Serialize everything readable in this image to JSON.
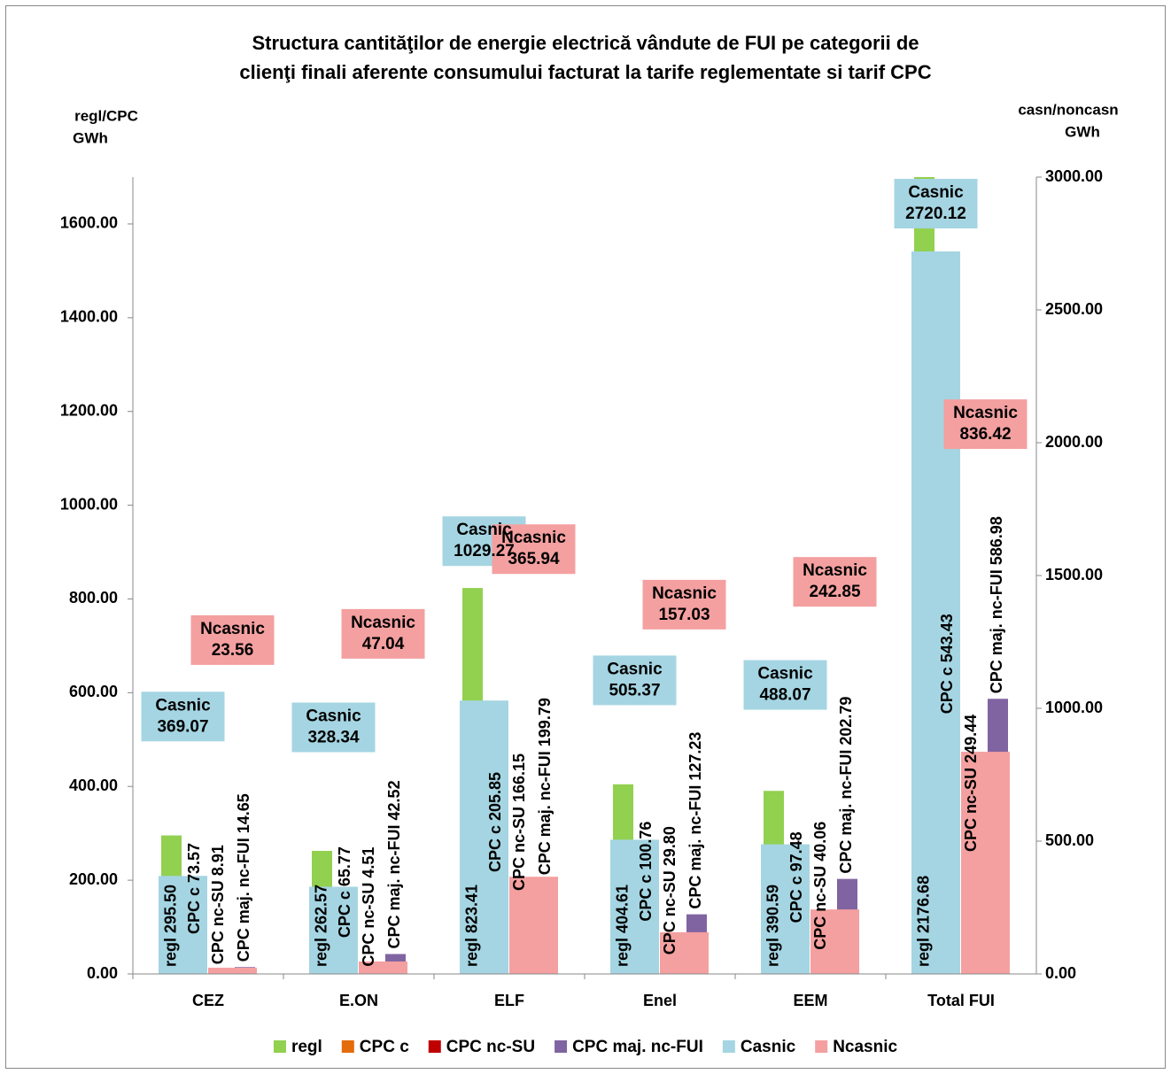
{
  "chart_data": {
    "type": "bar",
    "title": [
      "Structura cantităţilor de energie electrică vândute de FUI pe categorii de",
      "clienţi finali aferente consumului facturat la tarife reglementate si tarif CPC"
    ],
    "y_label": [
      "regl/CPC",
      "GWh"
    ],
    "y2_label": [
      "casn/noncasn",
      "GWh"
    ],
    "categories": [
      "CEZ",
      "E.ON",
      "ELF",
      "Enel",
      "EEM",
      "Total FUI"
    ],
    "ylim": [
      0,
      1700
    ],
    "yticks": [
      {
        "value": 0,
        "label": "0.00"
      },
      {
        "value": 200,
        "label": "200.00"
      },
      {
        "value": 400,
        "label": "400.00"
      },
      {
        "value": 600,
        "label": "600.00"
      },
      {
        "value": 800,
        "label": "800.00"
      },
      {
        "value": 1000,
        "label": "1000.00"
      },
      {
        "value": 1200,
        "label": "1200.00"
      },
      {
        "value": 1400,
        "label": "1400.00"
      },
      {
        "value": 1600,
        "label": "1600.00"
      }
    ],
    "y2lim": [
      0,
      3000
    ],
    "y2ticks": [
      {
        "value": 0,
        "label": "0.00"
      },
      {
        "value": 500,
        "label": "500.00"
      },
      {
        "value": 1000,
        "label": "1000.00"
      },
      {
        "value": 1500,
        "label": "1500.00"
      },
      {
        "value": 2000,
        "label": "2000.00"
      },
      {
        "value": 2500,
        "label": "2500.00"
      },
      {
        "value": 3000,
        "label": "3000.00"
      }
    ],
    "legend": "bottom",
    "series": [
      {
        "name": "regl",
        "color": "#92d050",
        "values": [
          295.5,
          262.57,
          823.41,
          404.61,
          390.59,
          2176.68
        ],
        "value_labels": [
          "regl 295.50",
          "regl 262.57",
          "regl 823.41",
          "regl 404.61",
          "regl 390.59",
          "regl 2176.68"
        ]
      },
      {
        "name": "CPC c",
        "color": "#e46c0a",
        "values": [
          73.57,
          65.77,
          205.85,
          100.76,
          97.48,
          543.43
        ],
        "value_labels": [
          "CPC c 73.57",
          "CPC c 65.77",
          "CPC c 205.85",
          "CPC c 100.76",
          "CPC c 97.48",
          "CPC c 543.43"
        ]
      },
      {
        "name": "CPC nc-SU",
        "color": "#c00000",
        "values": [
          8.91,
          4.51,
          166.15,
          29.8,
          40.06,
          249.44
        ],
        "value_labels": [
          "CPC nc-SU 8.91",
          "CPC nc-SU 4.51",
          "CPC nc-SU 166.15",
          "CPC nc-SU 29.80",
          "CPC nc-SU 40.06",
          "CPC nc-SU 249.44"
        ]
      },
      {
        "name": "CPC maj. nc-FUI",
        "color": "#8064a2",
        "values": [
          14.65,
          42.52,
          199.79,
          127.23,
          202.79,
          586.98
        ],
        "value_labels": [
          "CPC maj. nc-FUI 14.65",
          "CPC maj. nc-FUI 42.52",
          "CPC maj. nc-FUI 199.79",
          "CPC maj. nc-FUI 127.23",
          "CPC maj. nc-FUI 202.79",
          "CPC maj. nc-FUI 586.98"
        ]
      },
      {
        "name": "Casnic",
        "color": "#a5d5e2",
        "axis": "y2",
        "values": [
          369.07,
          328.34,
          1029.27,
          505.37,
          488.07,
          2720.12
        ],
        "value_labels": [
          "Casnic 369.07",
          "Casnic 328.34",
          "Casnic 1029.27",
          "Casnic 505.37",
          "Casnic 488.07",
          "Casnic 2720.12"
        ]
      },
      {
        "name": "Ncasnic",
        "color": "#f4a0a0",
        "axis": "y2",
        "values": [
          23.56,
          47.04,
          365.94,
          157.03,
          242.85,
          836.42
        ],
        "value_labels": [
          "Ncasnic 23.56",
          "Ncasnic 47.04",
          "Ncasnic 365.94",
          "Ncasnic 157.03",
          "Ncasnic 242.85",
          "Ncasnic 836.42"
        ]
      }
    ]
  }
}
